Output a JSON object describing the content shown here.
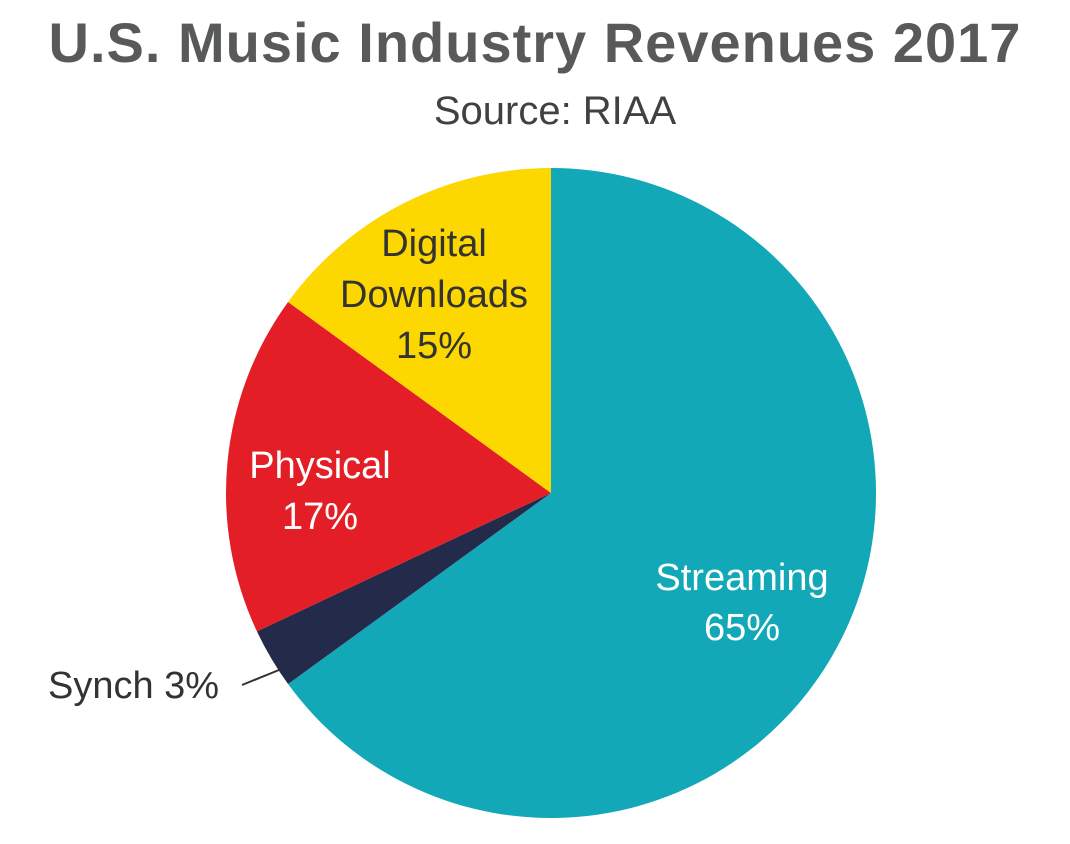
{
  "chart_data": {
    "type": "pie",
    "title": "U.S. Music Industry Revenues 2017",
    "subtitle": "Source: RIAA",
    "start_angle_deg": 0,
    "direction": "clockwise",
    "slices": [
      {
        "name": "Streaming",
        "value": 65,
        "value_label": "65%",
        "color": "#12a8b8",
        "label_color": "#ffffff"
      },
      {
        "name": "Synch",
        "value": 3,
        "value_label": "3%",
        "color": "#242a4a",
        "label_color": "#333333"
      },
      {
        "name": "Physical",
        "value": 17,
        "value_label": "17%",
        "color": "#e41e26",
        "label_color": "#ffffff"
      },
      {
        "name": "Digital Downloads",
        "value": 15,
        "value_label": "15%",
        "color": "#fdd700",
        "label_color": "#333333"
      }
    ]
  }
}
